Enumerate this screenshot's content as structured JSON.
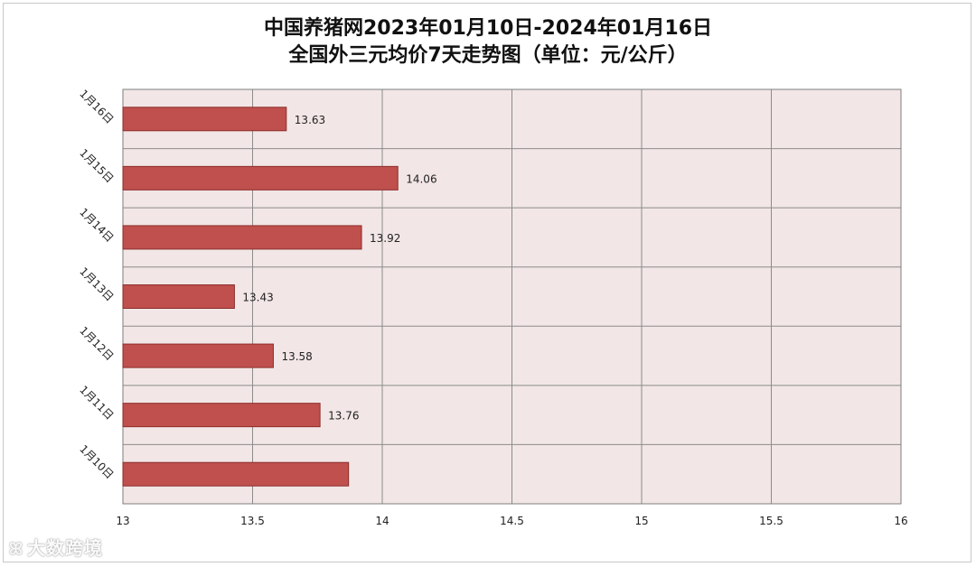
{
  "chart_data": {
    "type": "bar",
    "orientation": "horizontal",
    "title_line1": "中国养猪网2023年01月10日-2024年01月16日",
    "title_line2": "全国外三元均价7天走势图（单位：元/公斤）",
    "categories": [
      "1月16日",
      "1月15日",
      "1月14日",
      "1月13日",
      "1月12日",
      "1月11日",
      "1月10日"
    ],
    "values": [
      13.63,
      14.06,
      13.92,
      13.43,
      13.58,
      13.76,
      13.87
    ],
    "data_labels": [
      "13.63",
      "14.06",
      "13.92",
      "13.43",
      "13.58",
      "13.76",
      ""
    ],
    "xlim": [
      13,
      16
    ],
    "x_ticks": [
      "13",
      "13.5",
      "14",
      "14.5",
      "15",
      "15.5",
      "16"
    ],
    "xlabel": "",
    "ylabel": "",
    "grid": true,
    "bar_color": "#c0504d",
    "plot_bg": "#f2e6e6",
    "grid_color": "#8c8c8c"
  },
  "watermark": {
    "text": "大数跨境",
    "icon": "brand-logo-icon"
  }
}
